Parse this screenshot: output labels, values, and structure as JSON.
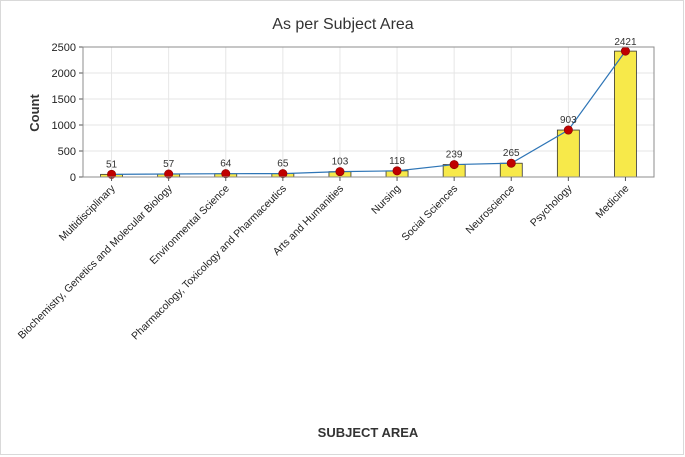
{
  "chart_data": {
    "type": "bar",
    "title": "As per Subject Area",
    "xlabel": "SUBJECT AREA",
    "ylabel": "Count",
    "categories": [
      "Multidisciplinary",
      "Biochemistry, Genetics and Molecular Biology",
      "Environmental Science",
      "Pharmacology, Toxicology and Pharmaceutics",
      "Arts and Humanities",
      "Nursing",
      "Social Sciences",
      "Neuroscience",
      "Psychology",
      "Medicine"
    ],
    "values": [
      51,
      57,
      64,
      65,
      103,
      118,
      239,
      265,
      903,
      2421
    ],
    "ylim": [
      0,
      2500
    ],
    "yticks": [
      0,
      500,
      1000,
      1500,
      2000,
      2500
    ],
    "overlay": "line with markers",
    "grid": true,
    "legend": "none",
    "colors": {
      "bar_fill": "#f7e94a",
      "bar_edge": "#333333",
      "line": "#2e75b6",
      "marker": "#c00000",
      "grid": "#e6e6e6"
    }
  }
}
